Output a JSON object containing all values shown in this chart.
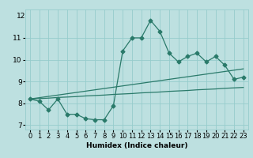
{
  "xlabel": "Humidex (Indice chaleur)",
  "bg_color": "#bde0e0",
  "grid_color": "#96cccc",
  "line_color": "#2a7a6a",
  "x_data": [
    0,
    1,
    2,
    3,
    4,
    5,
    6,
    7,
    8,
    9,
    10,
    11,
    12,
    13,
    14,
    15,
    16,
    17,
    18,
    19,
    20,
    21,
    22,
    23
  ],
  "y_main": [
    8.2,
    8.1,
    7.7,
    8.2,
    7.5,
    7.5,
    7.3,
    7.25,
    7.25,
    7.9,
    10.4,
    11.0,
    11.0,
    11.8,
    11.3,
    10.3,
    9.9,
    10.15,
    10.3,
    9.9,
    10.15,
    9.75,
    9.1,
    9.2
  ],
  "y_trend1": [
    8.2,
    8.22,
    8.24,
    8.27,
    8.29,
    8.31,
    8.34,
    8.36,
    8.38,
    8.41,
    8.43,
    8.45,
    8.48,
    8.5,
    8.52,
    8.55,
    8.57,
    8.59,
    8.62,
    8.64,
    8.66,
    8.69,
    8.71,
    8.73
  ],
  "y_trend2": [
    8.2,
    8.26,
    8.32,
    8.38,
    8.44,
    8.5,
    8.56,
    8.62,
    8.68,
    8.74,
    8.8,
    8.86,
    8.92,
    8.98,
    9.04,
    9.1,
    9.16,
    9.22,
    9.28,
    9.34,
    9.4,
    9.46,
    9.52,
    9.58
  ],
  "ylim": [
    6.8,
    12.3
  ],
  "yticks": [
    7,
    8,
    9,
    10,
    11
  ],
  "xticks": [
    0,
    1,
    2,
    3,
    4,
    5,
    6,
    7,
    8,
    9,
    10,
    11,
    12,
    13,
    14,
    15,
    16,
    17,
    18,
    19,
    20,
    21,
    22,
    23
  ],
  "xlim": [
    -0.5,
    23.5
  ],
  "xlabel_fontsize": 6.5,
  "tick_fontsize": 6,
  "marker_size": 2.5,
  "linewidth": 0.9
}
